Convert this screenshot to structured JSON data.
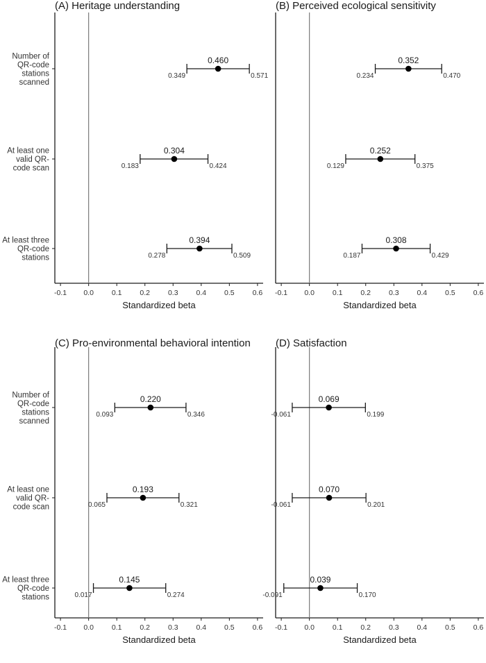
{
  "chart_data": [
    {
      "type": "forest",
      "title": "(A)   Heritage understanding",
      "xlabel": "Standardized beta",
      "xlim": [
        -0.12,
        0.62
      ],
      "xticks": [
        "-0.1",
        "0.0",
        "0.1",
        "0.2",
        "0.3",
        "0.4",
        "0.5",
        "0.6"
      ],
      "reference_line": 0,
      "categories": [
        [
          "Number of",
          "QR-code",
          "stations",
          "scanned"
        ],
        [
          "At least one",
          "valid QR-",
          "code scan"
        ],
        [
          "At least three",
          "QR-code",
          "stations"
        ]
      ],
      "estimates": [
        0.46,
        0.304,
        0.394
      ],
      "lower": [
        0.349,
        0.183,
        0.278
      ],
      "upper": [
        0.571,
        0.424,
        0.509
      ],
      "estimate_labels": [
        "0.460",
        "0.304",
        "0.394"
      ],
      "lower_labels": [
        "0.349",
        "0.183",
        "0.278"
      ],
      "upper_labels": [
        "0.571",
        "0.424",
        "0.509"
      ]
    },
    {
      "type": "forest",
      "title": "(B)   Perceived ecological sensitivity",
      "xlabel": "Standardized beta",
      "xlim": [
        -0.12,
        0.62
      ],
      "xticks": [
        "-0.1",
        "0.0",
        "0.1",
        "0.2",
        "0.3",
        "0.4",
        "0.5",
        "0.6"
      ],
      "reference_line": 0,
      "categories": [
        [],
        [],
        []
      ],
      "estimates": [
        0.352,
        0.252,
        0.308
      ],
      "lower": [
        0.234,
        0.129,
        0.187
      ],
      "upper": [
        0.47,
        0.375,
        0.429
      ],
      "estimate_labels": [
        "0.352",
        "0.252",
        "0.308"
      ],
      "lower_labels": [
        "0.234",
        "0.129",
        "0.187"
      ],
      "upper_labels": [
        "0.470",
        "0.375",
        "0.429"
      ]
    },
    {
      "type": "forest",
      "title": "(C)   Pro-environmental behavioral intention",
      "xlabel": "Standardized beta",
      "xlim": [
        -0.12,
        0.62
      ],
      "xticks": [
        "-0.1",
        "0.0",
        "0.1",
        "0.2",
        "0.3",
        "0.4",
        "0.5",
        "0.6"
      ],
      "reference_line": 0,
      "categories": [
        [
          "Number of",
          "QR-code",
          "stations",
          "scanned"
        ],
        [
          "At least one",
          "valid QR-",
          "code scan"
        ],
        [
          "At least three",
          "QR-code",
          "stations"
        ]
      ],
      "estimates": [
        0.22,
        0.193,
        0.145
      ],
      "lower": [
        0.093,
        0.065,
        0.017
      ],
      "upper": [
        0.346,
        0.321,
        0.274
      ],
      "estimate_labels": [
        "0.220",
        "0.193",
        "0.145"
      ],
      "lower_labels": [
        "0.093",
        "0.065",
        "0.017"
      ],
      "upper_labels": [
        "0.346",
        "0.321",
        "0.274"
      ]
    },
    {
      "type": "forest",
      "title": "(D)   Satisfaction",
      "xlabel": "Standardized beta",
      "xlim": [
        -0.12,
        0.62
      ],
      "xticks": [
        "-0.1",
        "0.0",
        "0.1",
        "0.2",
        "0.3",
        "0.4",
        "0.5",
        "0.6"
      ],
      "reference_line": 0,
      "categories": [
        [],
        [],
        []
      ],
      "estimates": [
        0.069,
        0.07,
        0.039
      ],
      "lower": [
        -0.061,
        -0.061,
        -0.091
      ],
      "upper": [
        0.199,
        0.201,
        0.17
      ],
      "estimate_labels": [
        "0.069",
        "0.070",
        "0.039"
      ],
      "lower_labels": [
        "-0.061",
        "-0.061",
        "-0.091"
      ],
      "upper_labels": [
        "0.199",
        "0.201",
        "0.170"
      ]
    }
  ]
}
